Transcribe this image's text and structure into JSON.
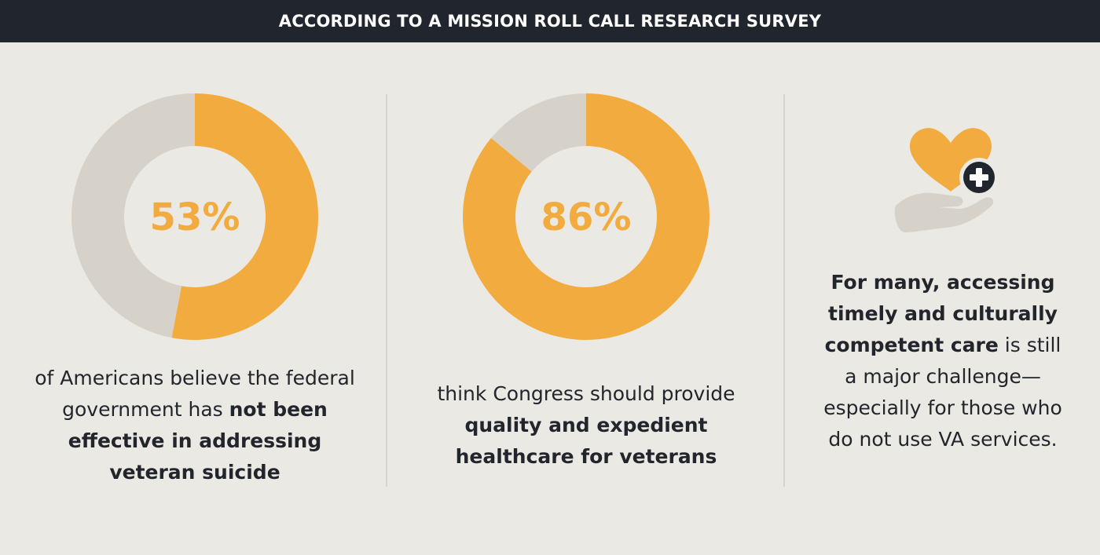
{
  "header": {
    "title": "ACCORDING TO A MISSION ROLL CALL RESEARCH SURVEY"
  },
  "colors": {
    "accent": "#f2ab3e",
    "track": "#d6d2ca",
    "background": "#ebe9e4",
    "banner": "#21252d",
    "text": "#22252b"
  },
  "chart_data": [
    {
      "type": "pie",
      "variant": "donut",
      "values": [
        53,
        47
      ],
      "center_label": "53%",
      "caption_plain": "of Americans believe the federal government has",
      "caption_bold": "not been effective in addressing veteran suicide"
    },
    {
      "type": "pie",
      "variant": "donut",
      "values": [
        86,
        14
      ],
      "center_label": "86%",
      "caption_plain": "think Congress should provide",
      "caption_bold": "quality and expedient healthcare for veterans"
    }
  ],
  "info_panel": {
    "icon": "heart-hand-plus-icon",
    "text_bold": "For many, accessing timely and culturally competent care",
    "text_plain": "is still a major challenge—especially for those who do not use VA services."
  }
}
